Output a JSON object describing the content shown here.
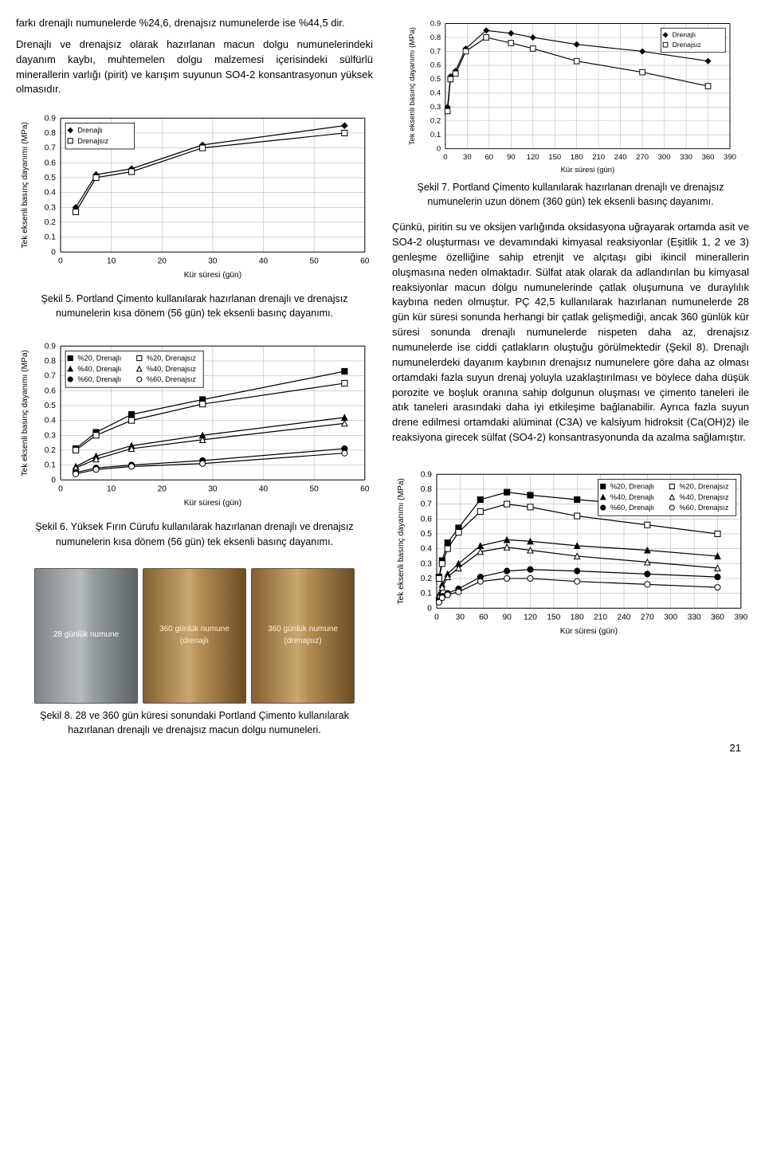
{
  "paragraphs": {
    "intro1": "farkı drenajlı numunelerde %24,6, drenajsız numunelerde ise %44,5 dir.",
    "intro2": "Drenajlı ve drenajsız olarak hazırlanan macun dolgu numunelerindeki dayanım kaybı, muhtemelen dolgu malzemesi içerisindeki sülfürlü minerallerin varlığı (pirit) ve karışım suyunun SO4-2 konsantrasyonun yüksek olmasıdır.",
    "cap5": "Şekil 5. Portland Çimento kullanılarak hazırlanan drenajlı ve drenajsız numunelerin kısa dönem (56 gün) tek eksenli basınç dayanımı.",
    "cap6": "Şekil 6. Yüksek Fırın Cürufu kullanılarak hazırlanan drenajlı ve drenajsız numunelerin kısa dönem (56 gün) tek eksenli basınç dayanımı.",
    "cap7": "Şekil 7. Portland Çimento kullanılarak hazırlanan drenajlı ve drenajsız numunelerin uzun dönem (360 gün) tek eksenli basınç dayanımı.",
    "cap8": "Şekil 8. 28 ve 360 gün küresi sonundaki Portland Çimento kullanılarak hazırlanan drenajlı ve drenajsız macun dolgu numuneleri.",
    "right_long": "Çünkü, piritin su ve oksijen varlığında oksidasyona uğrayarak ortamda asit ve SO4-2 oluşturması ve devamındaki kimyasal reaksiyonlar (Eşitlik 1, 2 ve 3) genleşme özelliğine sahip etrenjit ve alçıtaşı gibi ikincil minerallerin oluşmasına neden olmaktadır. Sülfat atak olarak da adlandırılan bu kimyasal reaksiyonlar macun dolgu numunelerinde çatlak oluşumuna ve duraylılık kaybına neden olmuştur. PÇ 42,5 kullanılarak hazırlanan numunelerde 28 gün kür süresi sonunda herhangi bir çatlak gelişmediği, ancak 360 günlük kür süresi sonunda drenajlı numunelerde nispeten daha az, drenajsız numunelerde ise ciddi çatlakların oluştuğu görülmektedir (Şekil 8). Drenajlı numunelerdeki dayanım kaybının drenajsız numunelere göre daha az olması ortamdaki fazla suyun drenaj yoluyla uzaklaştırılması ve böylece daha düşük porozite ve boşluk oranına sahip dolgunun oluşması ve çimento taneleri ile atık taneleri arasındaki daha iyi etkileşime bağlanabilir. Ayrıca fazla suyun drene edilmesi ortamdaki alüminat (C3A) ve kalsiyum hidroksit (Ca(OH)2) ile reaksiyona girecek sülfat (SO4-2) konsantrasyonunda da azalma sağlamıştır."
  },
  "chartShared": {
    "ylabel": "Tek eksenli basınç dayanımı (MPa)",
    "xlabel_short": "Kür süresi (gün)",
    "xlabel_long": "Kür süresi (gün)",
    "grid": true,
    "bg": "#ffffff",
    "gridColor": "#c4c4c4",
    "font": 10
  },
  "chart5": {
    "type": "line",
    "ylim": [
      0,
      0.9
    ],
    "ytick": 0.1,
    "xlim": [
      0,
      60
    ],
    "xtick": 10,
    "legend": {
      "pos": "top-left",
      "entries": [
        {
          "label": "Drenajlı",
          "marker": "diamond-filled"
        },
        {
          "label": "Drenajsız",
          "marker": "square-open"
        }
      ]
    },
    "series": [
      {
        "name": "Drenajlı",
        "marker": "diamond-filled",
        "x": [
          3,
          7,
          14,
          28,
          56
        ],
        "y": [
          0.3,
          0.52,
          0.56,
          0.72,
          0.85
        ]
      },
      {
        "name": "Drenajsız",
        "marker": "square-open",
        "x": [
          3,
          7,
          14,
          28,
          56
        ],
        "y": [
          0.27,
          0.5,
          0.54,
          0.7,
          0.8
        ]
      }
    ]
  },
  "chart6": {
    "type": "line",
    "ylim": [
      0,
      0.9
    ],
    "ytick": 0.1,
    "xlim": [
      0,
      60
    ],
    "xtick": 10,
    "legend": {
      "pos": "top-left",
      "entries": [
        {
          "label": "%20, Drenajlı",
          "marker": "square-filled"
        },
        {
          "label": "%40, Drenajlı",
          "marker": "triangle-filled"
        },
        {
          "label": "%60, Drenajlı",
          "marker": "circle-filled"
        },
        {
          "label": "%20, Drenajsız",
          "marker": "square-open"
        },
        {
          "label": "%40, Drenajsız",
          "marker": "triangle-open"
        },
        {
          "label": "%60, Drenajsız",
          "marker": "circle-open"
        }
      ]
    },
    "series": [
      {
        "name": "%20 D",
        "marker": "square-filled",
        "x": [
          3,
          7,
          14,
          28,
          56
        ],
        "y": [
          0.21,
          0.32,
          0.44,
          0.54,
          0.73
        ]
      },
      {
        "name": "%20 Dz",
        "marker": "square-open",
        "x": [
          3,
          7,
          14,
          28,
          56
        ],
        "y": [
          0.2,
          0.3,
          0.4,
          0.51,
          0.65
        ]
      },
      {
        "name": "%40 D",
        "marker": "triangle-filled",
        "x": [
          3,
          7,
          14,
          28,
          56
        ],
        "y": [
          0.09,
          0.16,
          0.23,
          0.3,
          0.42
        ]
      },
      {
        "name": "%40 Dz",
        "marker": "triangle-open",
        "x": [
          3,
          7,
          14,
          28,
          56
        ],
        "y": [
          0.08,
          0.14,
          0.21,
          0.27,
          0.38
        ]
      },
      {
        "name": "%60 D",
        "marker": "circle-filled",
        "x": [
          3,
          7,
          14,
          28,
          56
        ],
        "y": [
          0.05,
          0.08,
          0.1,
          0.13,
          0.21
        ]
      },
      {
        "name": "%60 Dz",
        "marker": "circle-open",
        "x": [
          3,
          7,
          14,
          28,
          56
        ],
        "y": [
          0.04,
          0.07,
          0.09,
          0.11,
          0.18
        ]
      }
    ]
  },
  "chart7": {
    "type": "line",
    "ylim": [
      0,
      0.9
    ],
    "ytick": 0.1,
    "xlim": [
      0,
      390
    ],
    "xtick": 30,
    "legend": {
      "pos": "top-right",
      "entries": [
        {
          "label": "Drenajlı",
          "marker": "diamond-filled"
        },
        {
          "label": "Drenajsız",
          "marker": "square-open"
        }
      ]
    },
    "series": [
      {
        "name": "Drenajlı",
        "marker": "diamond-filled",
        "x": [
          3,
          7,
          14,
          28,
          56,
          90,
          120,
          180,
          270,
          360
        ],
        "y": [
          0.3,
          0.52,
          0.56,
          0.72,
          0.85,
          0.83,
          0.8,
          0.75,
          0.7,
          0.63
        ]
      },
      {
        "name": "Drenajsız",
        "marker": "square-open",
        "x": [
          3,
          7,
          14,
          28,
          56,
          90,
          120,
          180,
          270,
          360
        ],
        "y": [
          0.27,
          0.5,
          0.54,
          0.7,
          0.8,
          0.76,
          0.72,
          0.63,
          0.55,
          0.45
        ]
      }
    ]
  },
  "chart9": {
    "type": "line",
    "ylim": [
      0,
      0.9
    ],
    "ytick": 0.1,
    "xlim": [
      0,
      390
    ],
    "xtick": 30,
    "legend": {
      "pos": "top-right",
      "entries": [
        {
          "label": "%20, Drenajlı",
          "marker": "square-filled"
        },
        {
          "label": "%40, Drenajlı",
          "marker": "triangle-filled"
        },
        {
          "label": "%60, Drenajlı",
          "marker": "circle-filled"
        },
        {
          "label": "%20, Drenajsız",
          "marker": "square-open"
        },
        {
          "label": "%40, Drenajsız",
          "marker": "triangle-open"
        },
        {
          "label": "%60, Drenajsız",
          "marker": "circle-open"
        }
      ]
    },
    "series": [
      {
        "name": "%20 D",
        "marker": "square-filled",
        "x": [
          3,
          7,
          14,
          28,
          56,
          90,
          120,
          180,
          270,
          360
        ],
        "y": [
          0.21,
          0.32,
          0.44,
          0.54,
          0.73,
          0.78,
          0.76,
          0.73,
          0.69,
          0.65
        ]
      },
      {
        "name": "%20 Dz",
        "marker": "square-open",
        "x": [
          3,
          7,
          14,
          28,
          56,
          90,
          120,
          180,
          270,
          360
        ],
        "y": [
          0.2,
          0.3,
          0.4,
          0.51,
          0.65,
          0.7,
          0.68,
          0.62,
          0.56,
          0.5
        ]
      },
      {
        "name": "%40 D",
        "marker": "triangle-filled",
        "x": [
          3,
          7,
          14,
          28,
          56,
          90,
          120,
          180,
          270,
          360
        ],
        "y": [
          0.09,
          0.16,
          0.23,
          0.3,
          0.42,
          0.46,
          0.45,
          0.42,
          0.39,
          0.35
        ]
      },
      {
        "name": "%40 Dz",
        "marker": "triangle-open",
        "x": [
          3,
          7,
          14,
          28,
          56,
          90,
          120,
          180,
          270,
          360
        ],
        "y": [
          0.08,
          0.14,
          0.21,
          0.27,
          0.38,
          0.41,
          0.39,
          0.35,
          0.31,
          0.27
        ]
      },
      {
        "name": "%60 D",
        "marker": "circle-filled",
        "x": [
          3,
          7,
          14,
          28,
          56,
          90,
          120,
          180,
          270,
          360
        ],
        "y": [
          0.05,
          0.08,
          0.1,
          0.13,
          0.21,
          0.25,
          0.26,
          0.25,
          0.23,
          0.21
        ]
      },
      {
        "name": "%60 Dz",
        "marker": "circle-open",
        "x": [
          3,
          7,
          14,
          28,
          56,
          90,
          120,
          180,
          270,
          360
        ],
        "y": [
          0.04,
          0.07,
          0.09,
          0.11,
          0.18,
          0.2,
          0.2,
          0.18,
          0.16,
          0.14
        ]
      }
    ]
  },
  "photos": {
    "p1": "28 günlük numune",
    "p2": "360 günlük numune (drenajlı",
    "p3": "360 günlük numune (drenajsız)"
  },
  "pageNumber": "21"
}
